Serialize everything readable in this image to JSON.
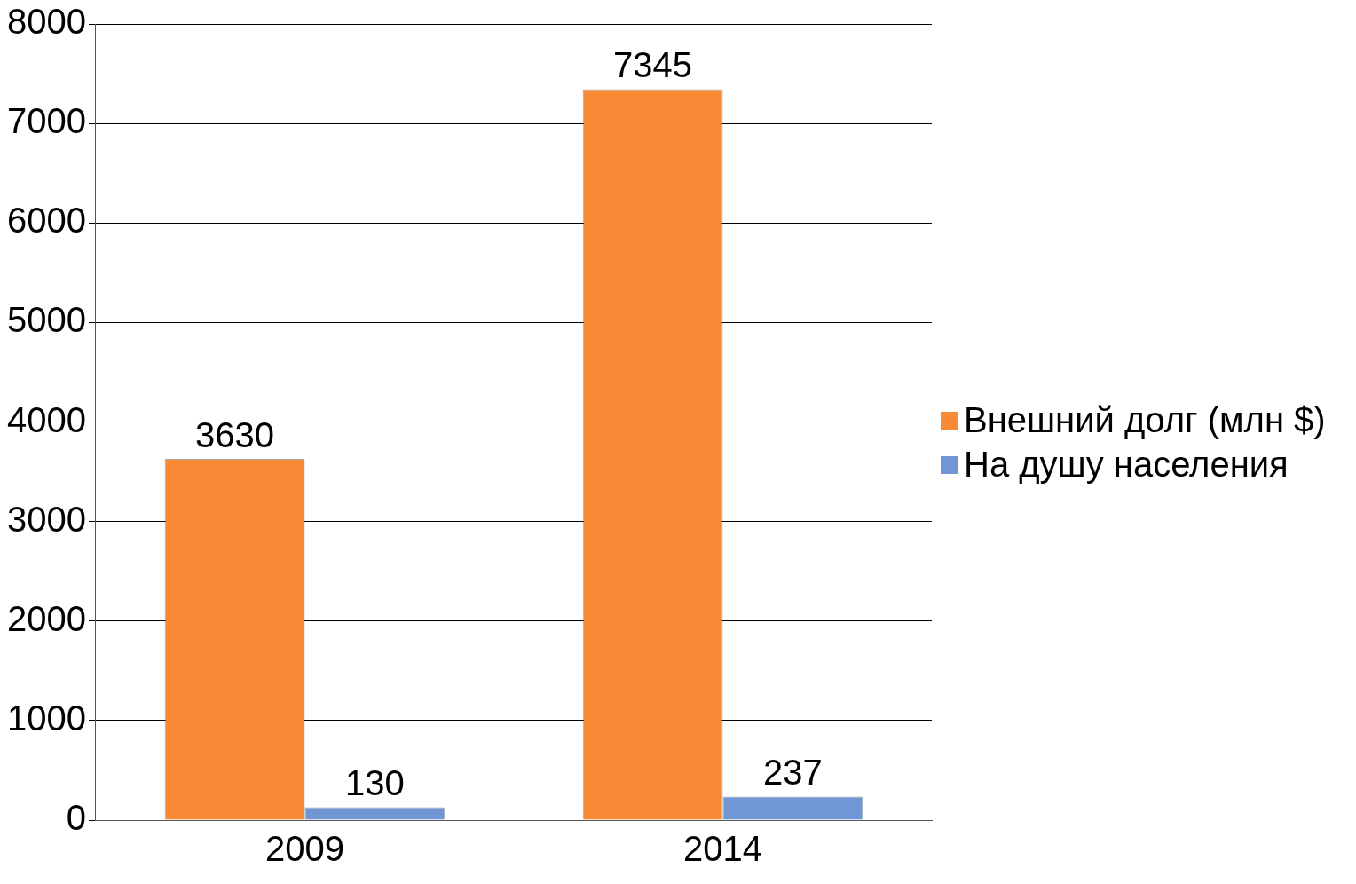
{
  "chart_data": {
    "type": "bar",
    "categories": [
      "2009",
      "2014"
    ],
    "series": [
      {
        "name": "Внешний долг (млн $)",
        "color": "#f98a35",
        "values": [
          3630,
          7345
        ]
      },
      {
        "name": "На душу населения",
        "color": "#7196d6",
        "values": [
          130,
          237
        ]
      }
    ],
    "ylim": [
      0,
      8000
    ],
    "yticks": [
      0,
      1000,
      2000,
      3000,
      4000,
      5000,
      6000,
      7000,
      8000
    ],
    "grid": "y",
    "legend": "right",
    "data_labels": true
  }
}
